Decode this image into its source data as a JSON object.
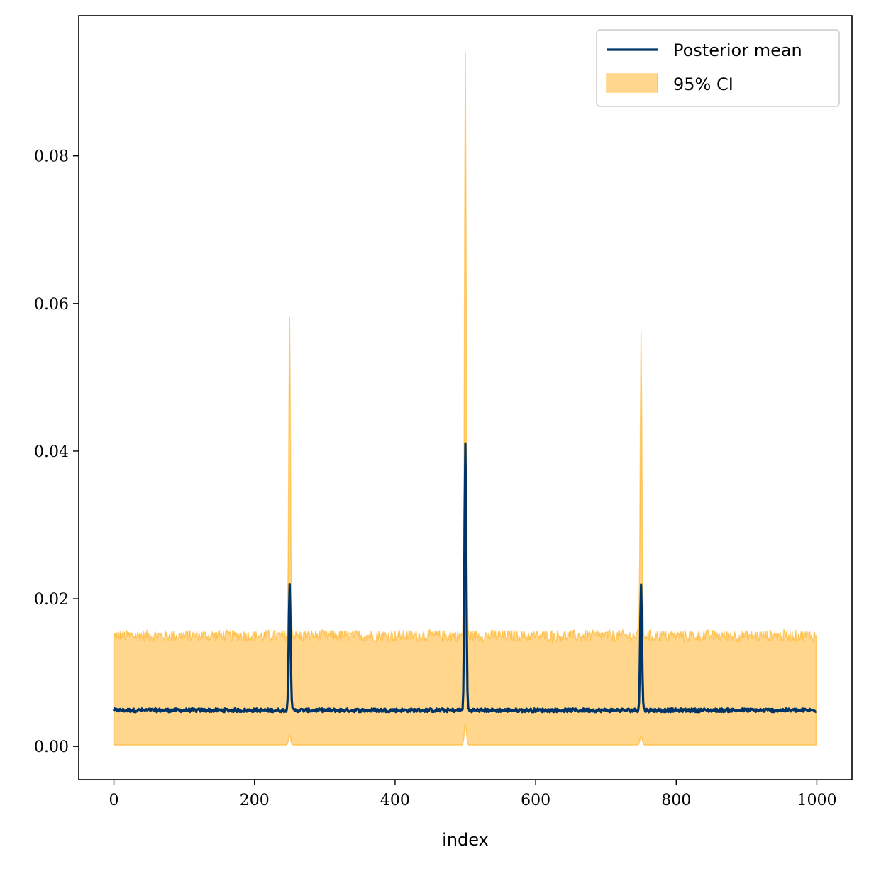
{
  "chart_data": {
    "type": "line",
    "title": "",
    "xlabel": "index",
    "ylabel": "",
    "xlim": [
      -50,
      1050
    ],
    "ylim": [
      -0.0045,
      0.099
    ],
    "xticks": [
      0,
      200,
      400,
      600,
      800,
      1000
    ],
    "xtick_labels": [
      "0",
      "200",
      "400",
      "600",
      "800",
      "1000"
    ],
    "yticks": [
      0.0,
      0.02,
      0.04,
      0.06,
      0.08
    ],
    "ytick_labels": [
      "0.00",
      "0.02",
      "0.04",
      "0.06",
      "0.08"
    ],
    "grid": false,
    "legend_position": "top-right",
    "series": [
      {
        "name": "Posterior mean",
        "kind": "line",
        "color": "#003366",
        "baseline": 0.0049,
        "peaks": [
          {
            "x": 250,
            "y": 0.0222
          },
          {
            "x": 500,
            "y": 0.0409
          },
          {
            "x": 750,
            "y": 0.0218
          }
        ]
      },
      {
        "name": "95% CI",
        "kind": "band",
        "color": "#FFA500",
        "upper_baseline": 0.015,
        "lower_baseline": 0.0002,
        "upper_peaks": [
          {
            "x": 250,
            "y": 0.058
          },
          {
            "x": 500,
            "y": 0.0943
          },
          {
            "x": 750,
            "y": 0.0567
          }
        ],
        "lower_peaks": [
          {
            "x": 250,
            "y": 0.0015
          },
          {
            "x": 500,
            "y": 0.003
          },
          {
            "x": 750,
            "y": 0.0015
          }
        ]
      }
    ],
    "x_range": [
      0,
      999
    ]
  }
}
